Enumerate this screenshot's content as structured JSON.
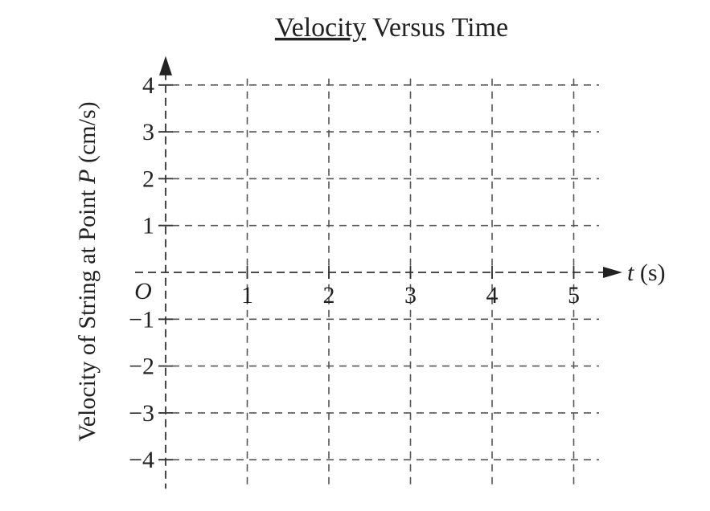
{
  "chart_data": {
    "type": "line",
    "title_underlined": "Velocity",
    "title_rest": " Versus Time",
    "ylabel_pre": "Velocity of String at Point ",
    "ylabel_var": "P",
    "ylabel_post": " (cm/s)",
    "xlabel_var": "t",
    "xlabel_unit": " (s)",
    "origin_label": "O",
    "x_ticks": [
      1,
      2,
      3,
      4,
      5
    ],
    "x_tick_labels": [
      "1",
      "2",
      "3",
      "4",
      "5"
    ],
    "y_ticks": [
      4,
      3,
      2,
      1,
      -1,
      -2,
      -3,
      -4
    ],
    "y_tick_labels": [
      "4",
      "3",
      "2",
      "1",
      "−1",
      "−2",
      "−3",
      "−4"
    ],
    "xlim": [
      0,
      5
    ],
    "ylim": [
      -4,
      4
    ],
    "grid": true,
    "series": []
  }
}
